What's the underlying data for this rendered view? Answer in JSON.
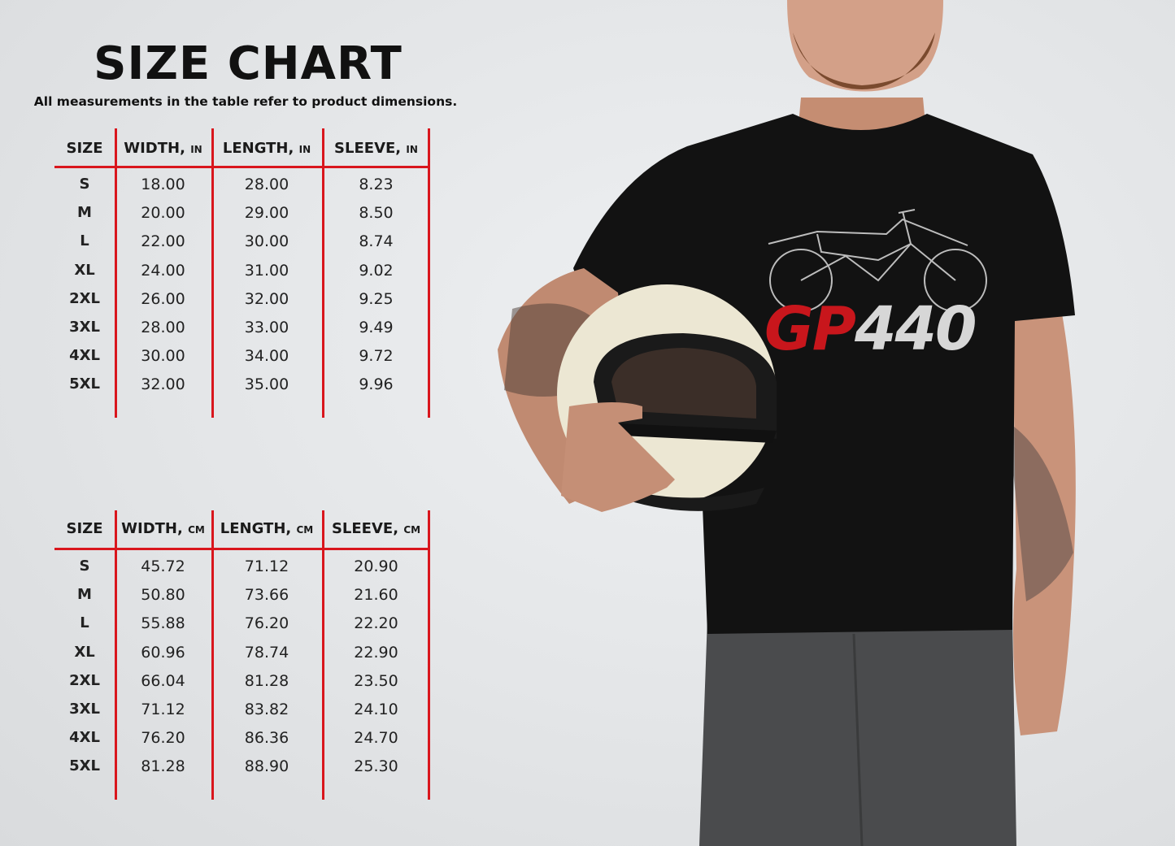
{
  "title": "SIZE CHART",
  "subtitle": "All measurements in the table refer to product dimensions.",
  "colors": {
    "accent_lines": "#d9161d",
    "background": "#e4e6e8",
    "shirt": "#111111",
    "print_red": "#c8161c"
  },
  "tables": [
    {
      "headers": [
        {
          "label": "SIZE",
          "unit": ""
        },
        {
          "label": "WIDTH,",
          "unit": "IN"
        },
        {
          "label": "LENGTH,",
          "unit": "IN"
        },
        {
          "label": "SLEEVE,",
          "unit": "IN"
        }
      ],
      "rows": [
        [
          "S",
          "18.00",
          "28.00",
          "8.23"
        ],
        [
          "M",
          "20.00",
          "29.00",
          "8.50"
        ],
        [
          "L",
          "22.00",
          "30.00",
          "8.74"
        ],
        [
          "XL",
          "24.00",
          "31.00",
          "9.02"
        ],
        [
          "2XL",
          "26.00",
          "32.00",
          "9.25"
        ],
        [
          "3XL",
          "28.00",
          "33.00",
          "9.49"
        ],
        [
          "4XL",
          "30.00",
          "34.00",
          "9.72"
        ],
        [
          "5XL",
          "32.00",
          "35.00",
          "9.96"
        ]
      ]
    },
    {
      "headers": [
        {
          "label": "SIZE",
          "unit": ""
        },
        {
          "label": "WIDTH,",
          "unit": "CM"
        },
        {
          "label": "LENGTH,",
          "unit": "CM"
        },
        {
          "label": "SLEEVE,",
          "unit": "CM"
        }
      ],
      "rows": [
        [
          "S",
          "45.72",
          "71.12",
          "20.90"
        ],
        [
          "M",
          "50.80",
          "73.66",
          "21.60"
        ],
        [
          "L",
          "55.88",
          "76.20",
          "22.20"
        ],
        [
          "XL",
          "60.96",
          "78.74",
          "22.90"
        ],
        [
          "2XL",
          "66.04",
          "81.28",
          "23.50"
        ],
        [
          "3XL",
          "71.12",
          "83.82",
          "24.10"
        ],
        [
          "4XL",
          "76.20",
          "86.36",
          "24.70"
        ],
        [
          "5XL",
          "81.28",
          "88.90",
          "25.30"
        ]
      ]
    }
  ],
  "shirt_print": {
    "red_part": "GP",
    "grey_part": "440"
  }
}
